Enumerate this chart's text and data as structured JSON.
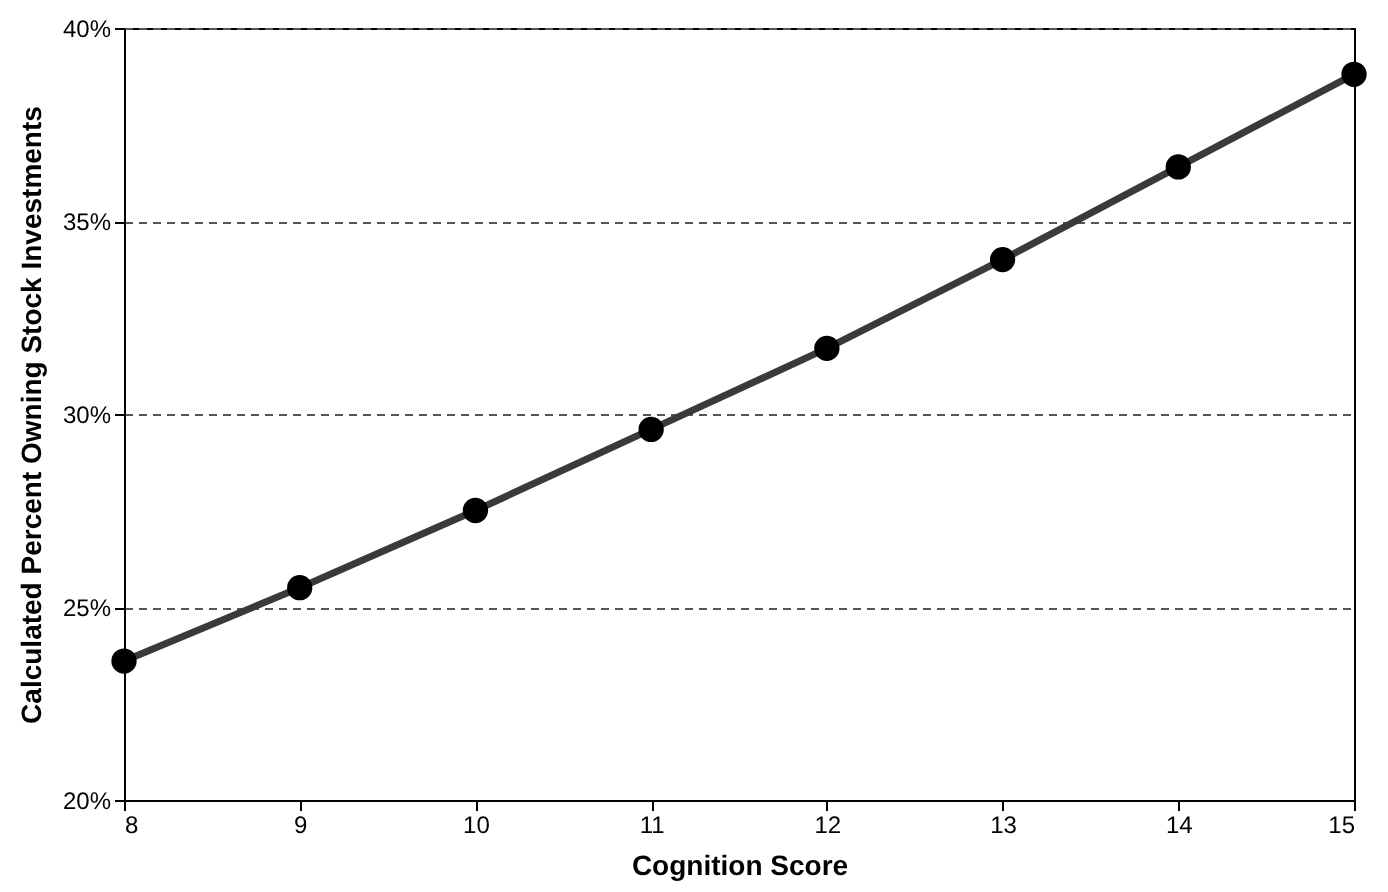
{
  "chart_data": {
    "type": "line",
    "xlabel": "Cognition Score",
    "ylabel": "Calculated Percent Owning Stock Investments",
    "x": [
      8,
      9,
      10,
      11,
      12,
      13,
      14,
      15
    ],
    "series": [
      {
        "color": "#3a3a3a",
        "values": [
          23.6,
          25.5,
          27.5,
          29.6,
          31.7,
          34.0,
          36.4,
          38.8
        ]
      }
    ],
    "xlim": [
      8,
      15
    ],
    "xticks": [
      8,
      9,
      10,
      11,
      12,
      13,
      14,
      15
    ],
    "ylim": [
      20,
      40
    ],
    "yticks": [
      {
        "value": 20,
        "label": "20%"
      },
      {
        "value": 25,
        "label": "25%"
      },
      {
        "value": 30,
        "label": "30%"
      },
      {
        "value": 35,
        "label": "35%"
      },
      {
        "value": 40,
        "label": "40%"
      }
    ],
    "grid": "y",
    "marker": "circle",
    "line_style": "solid"
  }
}
